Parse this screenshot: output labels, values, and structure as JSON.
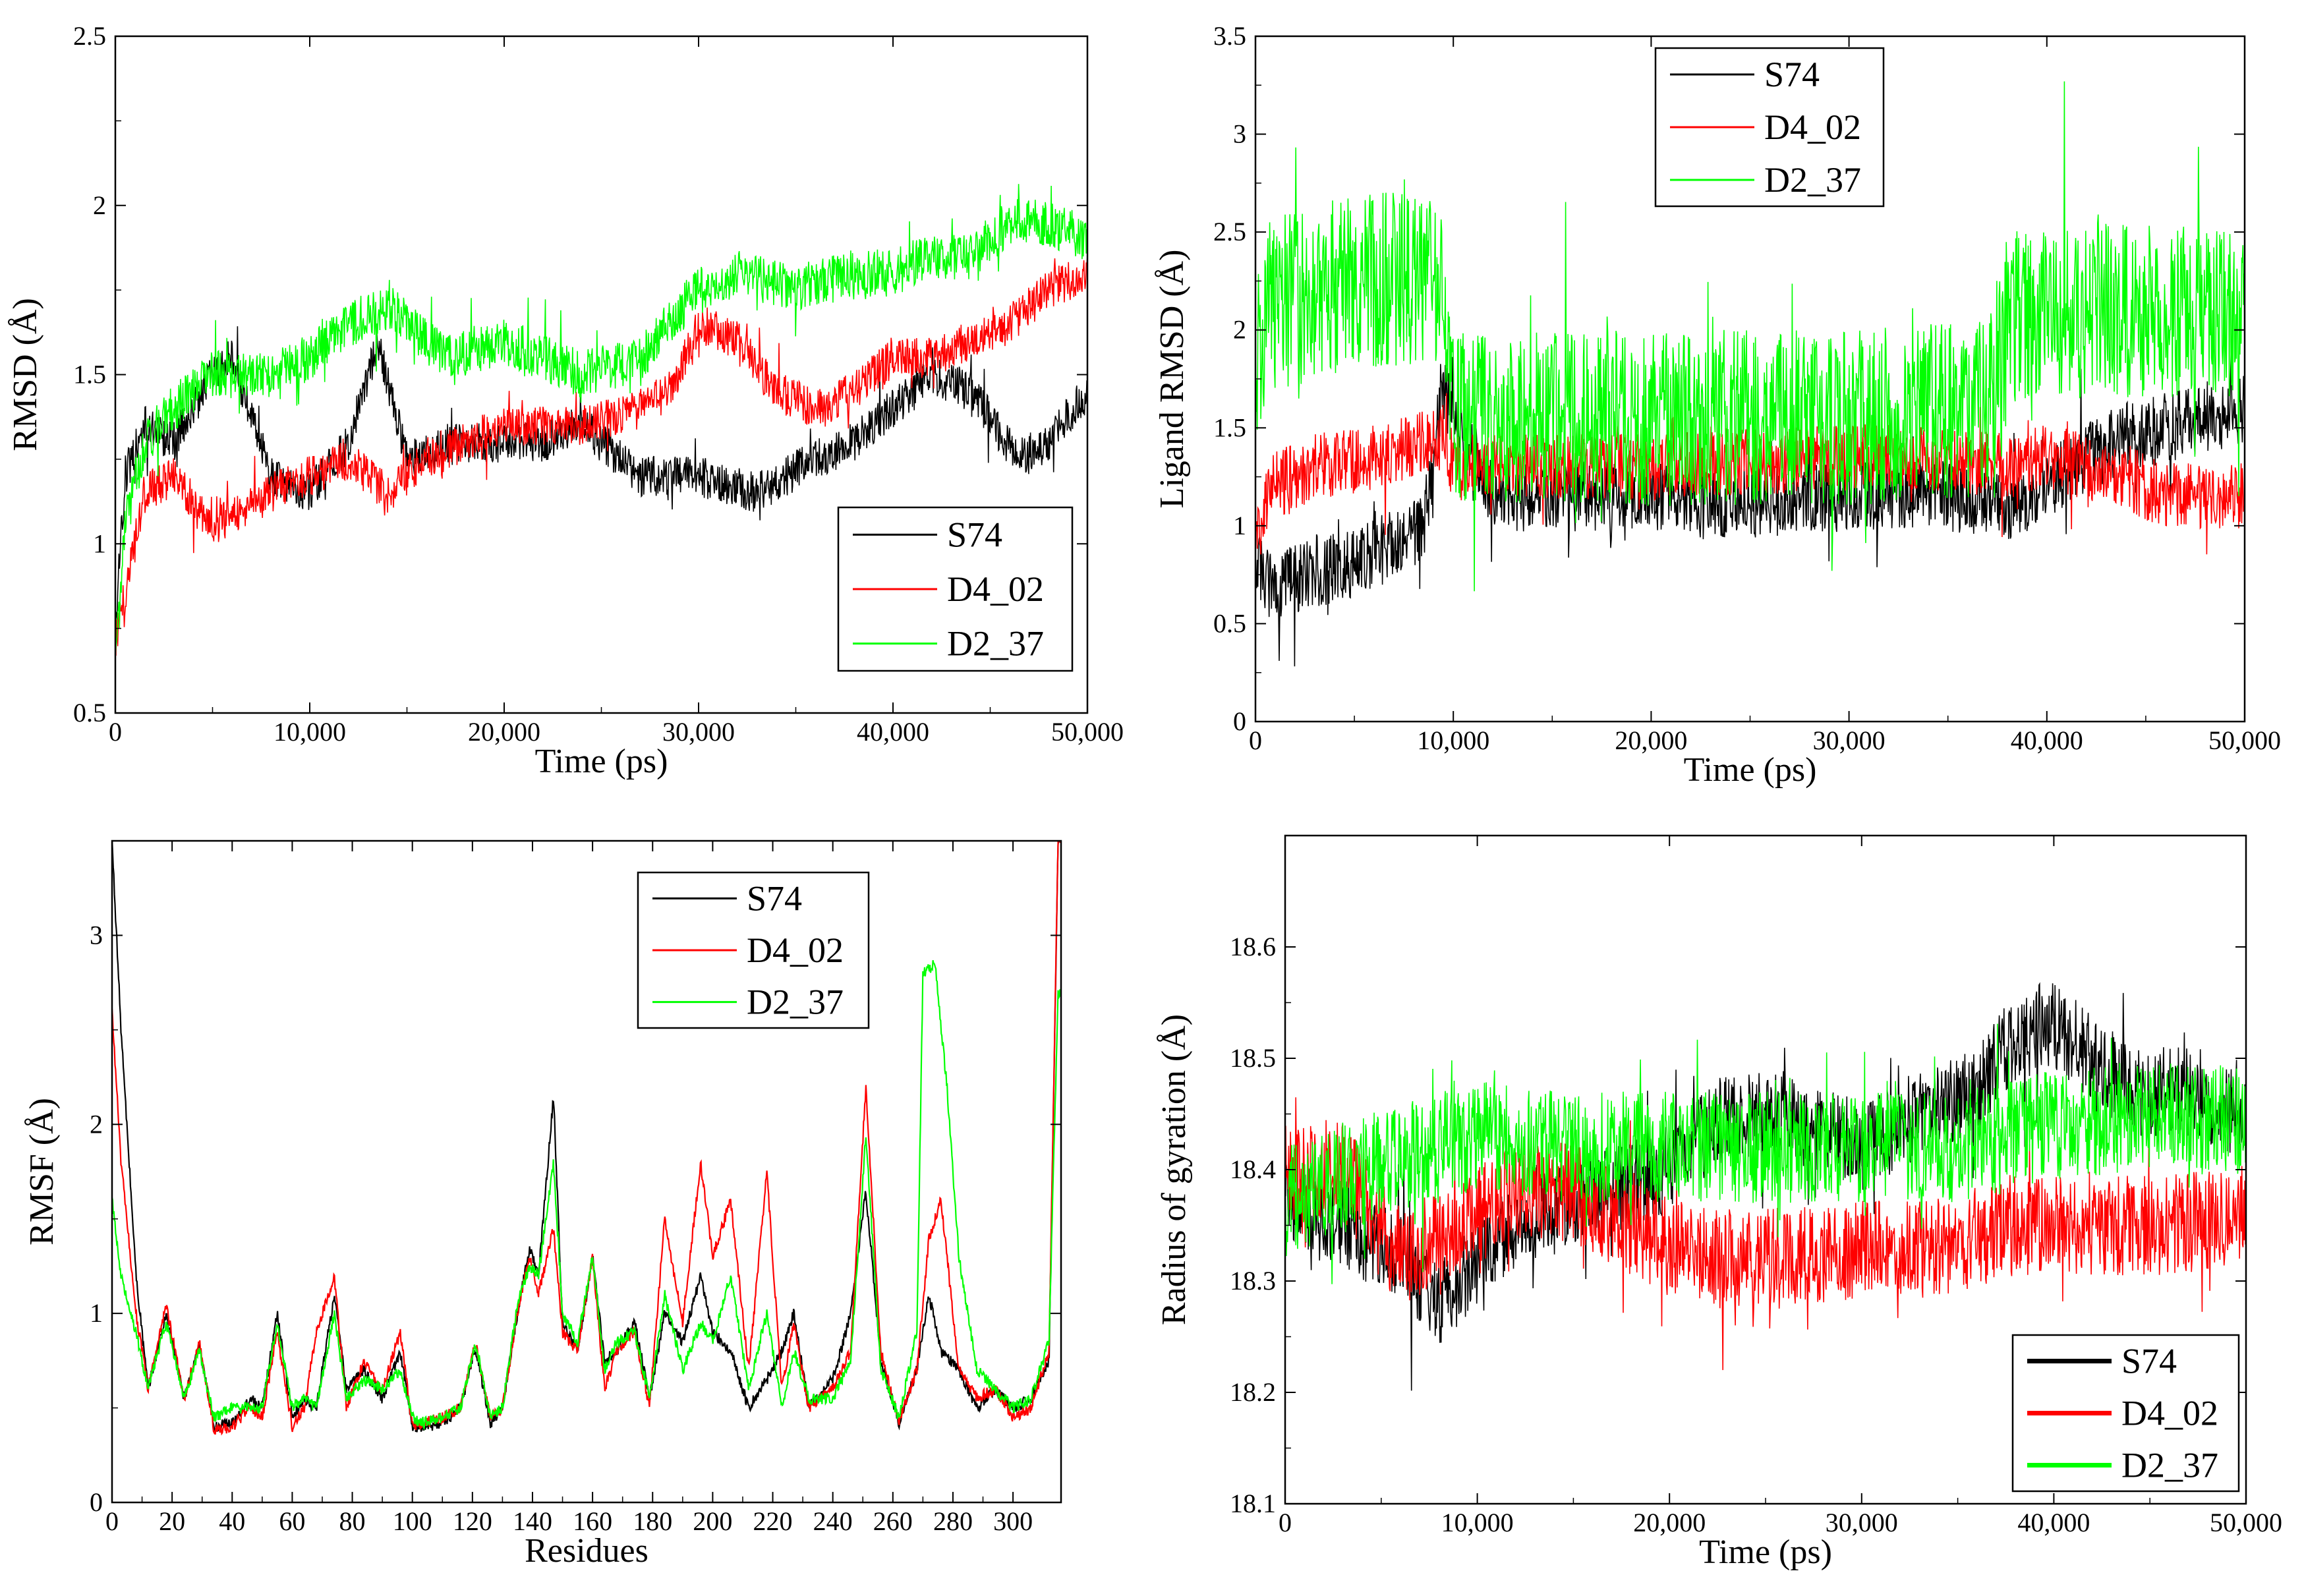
{
  "chart_data": [
    {
      "id": "rmsd",
      "type": "line",
      "title": "",
      "xlabel": "Time (ps)",
      "ylabel": "RMSD (Å)",
      "xlim": [
        0,
        50000
      ],
      "ylim": [
        0.5,
        2.5
      ],
      "xticks": [
        0,
        10000,
        20000,
        30000,
        40000,
        50000
      ],
      "xtick_labels": [
        "0",
        "10,000",
        "20,000",
        "30,000",
        "40,000",
        "50,000"
      ],
      "yticks": [
        0.5,
        1,
        1.5,
        2,
        2.5
      ],
      "ytick_labels": [
        "0.5",
        "1",
        "1.5",
        "2",
        "2.5"
      ],
      "legend_position": "bottom-right",
      "series": [
        {
          "name": "S74",
          "color": "#000000",
          "noise": 0.06,
          "x": [
            0,
            500,
            1500,
            3000,
            5000,
            6000,
            8000,
            10000,
            12000,
            13500,
            15000,
            18000,
            20000,
            22000,
            24000,
            27000,
            30000,
            33000,
            36000,
            38000,
            40000,
            42000,
            44000,
            46500,
            48000,
            50000
          ],
          "values": [
            0.75,
            1.2,
            1.35,
            1.3,
            1.5,
            1.55,
            1.2,
            1.15,
            1.3,
            1.6,
            1.25,
            1.3,
            1.3,
            1.3,
            1.35,
            1.2,
            1.2,
            1.15,
            1.25,
            1.3,
            1.4,
            1.5,
            1.45,
            1.25,
            1.3,
            1.45
          ]
        },
        {
          "name": "D4_02",
          "color": "#ff0000",
          "noise": 0.06,
          "x": [
            0,
            500,
            1500,
            3000,
            5000,
            8000,
            10000,
            12000,
            14000,
            16000,
            20000,
            24000,
            27000,
            28500,
            30000,
            32000,
            34000,
            36000,
            38000,
            40000,
            42000,
            44000,
            46000,
            48000,
            50000
          ],
          "values": [
            0.7,
            0.85,
            1.15,
            1.2,
            1.05,
            1.15,
            1.2,
            1.25,
            1.15,
            1.25,
            1.35,
            1.35,
            1.4,
            1.45,
            1.65,
            1.6,
            1.45,
            1.4,
            1.45,
            1.55,
            1.55,
            1.6,
            1.65,
            1.75,
            1.8
          ]
        },
        {
          "name": "D2_37",
          "color": "#00ff00",
          "noise": 0.07,
          "x": [
            0,
            500,
            1500,
            3000,
            5000,
            8000,
            10000,
            12000,
            14000,
            17000,
            20000,
            24000,
            27000,
            30000,
            32000,
            35000,
            38000,
            40000,
            42000,
            44000,
            46000,
            48000,
            50000
          ],
          "values": [
            0.65,
            1.05,
            1.3,
            1.4,
            1.5,
            1.5,
            1.55,
            1.65,
            1.7,
            1.55,
            1.6,
            1.5,
            1.55,
            1.75,
            1.8,
            1.75,
            1.8,
            1.8,
            1.85,
            1.85,
            1.95,
            1.95,
            1.9
          ]
        }
      ]
    },
    {
      "id": "ligand-rmsd",
      "type": "line",
      "title": "",
      "xlabel": "Time (ps)",
      "ylabel": "Ligand RMSD (Å)",
      "xlim": [
        0,
        50000
      ],
      "ylim": [
        0,
        3.5
      ],
      "xticks": [
        0,
        10000,
        20000,
        30000,
        40000,
        50000
      ],
      "xtick_labels": [
        "0",
        "10,000",
        "20,000",
        "30,000",
        "40,000",
        "50,000"
      ],
      "yticks": [
        0,
        0.5,
        1,
        1.5,
        2,
        2.5,
        3,
        3.5
      ],
      "ytick_labels": [
        "0",
        "0.5",
        "1",
        "1.5",
        "2",
        "2.5",
        "3",
        "3.5"
      ],
      "legend_position": "top-center",
      "series": [
        {
          "name": "S74",
          "color": "#000000",
          "noise": 0.18,
          "x": [
            0,
            800,
            3000,
            6000,
            7500,
            8500,
            9500,
            10500,
            12000,
            20000,
            23000,
            30000,
            35000,
            38000,
            40000,
            42000,
            44000,
            46000,
            48000,
            50000
          ],
          "values": [
            0.8,
            0.7,
            0.75,
            0.85,
            0.95,
            1.0,
            1.7,
            1.45,
            1.15,
            1.15,
            1.1,
            1.15,
            1.15,
            1.1,
            1.2,
            1.35,
            1.45,
            1.5,
            1.55,
            1.6
          ]
        },
        {
          "name": "D4_02",
          "color": "#ff0000",
          "noise": 0.17,
          "x": [
            0,
            800,
            3000,
            6000,
            9500,
            10000,
            15000,
            20000,
            30000,
            35000,
            38000,
            40000,
            42000,
            44000,
            46000,
            50000
          ],
          "values": [
            0.9,
            1.2,
            1.3,
            1.35,
            1.45,
            1.3,
            1.3,
            1.3,
            1.35,
            1.35,
            1.3,
            1.35,
            1.3,
            1.25,
            1.15,
            1.15
          ]
        },
        {
          "name": "D2_37",
          "color": "#00ff00",
          "noise": 0.45,
          "x": [
            0,
            500,
            3000,
            6000,
            9500,
            10000,
            20000,
            30000,
            37000,
            38000,
            40000,
            45000,
            50000
          ],
          "values": [
            1.8,
            2.1,
            2.2,
            2.25,
            2.3,
            1.55,
            1.55,
            1.55,
            1.6,
            2.05,
            2.1,
            2.1,
            2.05
          ]
        }
      ]
    },
    {
      "id": "rmsf",
      "type": "line",
      "title": "",
      "xlabel": "Residues",
      "ylabel": "RMSF (Å)",
      "xlim": [
        0,
        316
      ],
      "ylim": [
        0,
        3.5
      ],
      "xticks": [
        0,
        20,
        40,
        60,
        80,
        100,
        120,
        140,
        160,
        180,
        200,
        220,
        240,
        260,
        280,
        300
      ],
      "xtick_labels": [
        "0",
        "20",
        "40",
        "60",
        "80",
        "100",
        "120",
        "140",
        "160",
        "180",
        "200",
        "220",
        "240",
        "260",
        "280",
        "300"
      ],
      "yticks": [
        0,
        1,
        2,
        3
      ],
      "ytick_labels": [
        "0",
        "1",
        "2",
        "3"
      ],
      "legend_position": "top-right",
      "series": [
        {
          "name": "S74",
          "color": "#000000",
          "noise": 0.03,
          "x": [
            0,
            3,
            8,
            12,
            18,
            24,
            29,
            34,
            40,
            46,
            50,
            55,
            60,
            64,
            68,
            74,
            78,
            84,
            90,
            96,
            100,
            104,
            110,
            116,
            121,
            126,
            130,
            135,
            139,
            142,
            147,
            150,
            155,
            160,
            164,
            168,
            174,
            179,
            184,
            190,
            196,
            200,
            206,
            212,
            218,
            223,
            227,
            232,
            240,
            246,
            251,
            256,
            262,
            268,
            272,
            276,
            282,
            288,
            294,
            300,
            306,
            312,
            315,
            316
          ],
          "values": [
            3.5,
            2.5,
            1.2,
            0.6,
            1.0,
            0.55,
            0.82,
            0.4,
            0.42,
            0.55,
            0.5,
            1.0,
            0.45,
            0.55,
            0.5,
            1.1,
            0.6,
            0.7,
            0.55,
            0.8,
            0.4,
            0.4,
            0.42,
            0.5,
            0.82,
            0.42,
            0.5,
            1.0,
            1.35,
            1.2,
            2.15,
            0.95,
            0.8,
            1.3,
            0.75,
            0.8,
            0.95,
            0.55,
            1.0,
            0.85,
            1.2,
            0.9,
            0.8,
            0.5,
            0.65,
            0.8,
            1.0,
            0.5,
            0.65,
            1.0,
            1.65,
            0.75,
            0.42,
            0.7,
            1.1,
            0.8,
            0.7,
            0.5,
            0.6,
            0.5,
            0.55,
            0.75,
            3.5,
            3.5
          ]
        },
        {
          "name": "D4_02",
          "color": "#ff0000",
          "noise": 0.03,
          "x": [
            0,
            3,
            8,
            12,
            18,
            24,
            29,
            34,
            40,
            46,
            50,
            55,
            60,
            64,
            68,
            74,
            78,
            84,
            90,
            96,
            100,
            104,
            110,
            116,
            121,
            126,
            130,
            135,
            139,
            142,
            147,
            150,
            155,
            160,
            164,
            168,
            174,
            179,
            184,
            190,
            196,
            200,
            206,
            212,
            218,
            223,
            227,
            232,
            240,
            246,
            251,
            256,
            262,
            268,
            272,
            276,
            282,
            288,
            294,
            300,
            306,
            312,
            315,
            316
          ],
          "values": [
            2.6,
            1.8,
            1.0,
            0.6,
            1.05,
            0.55,
            0.85,
            0.38,
            0.4,
            0.5,
            0.45,
            0.9,
            0.4,
            0.5,
            0.9,
            1.2,
            0.5,
            0.75,
            0.6,
            0.9,
            0.4,
            0.42,
            0.45,
            0.5,
            0.85,
            0.45,
            0.5,
            1.0,
            1.3,
            1.1,
            1.45,
            0.9,
            0.8,
            1.3,
            0.6,
            0.8,
            0.9,
            0.5,
            1.5,
            0.95,
            1.8,
            1.3,
            1.6,
            0.7,
            1.75,
            0.6,
            0.95,
            0.5,
            0.6,
            0.8,
            2.2,
            0.8,
            0.42,
            0.7,
            1.4,
            1.6,
            0.7,
            0.55,
            0.6,
            0.45,
            0.5,
            0.8,
            3.5,
            3.5
          ]
        },
        {
          "name": "D2_37",
          "color": "#00ff00",
          "noise": 0.03,
          "x": [
            0,
            3,
            8,
            12,
            18,
            24,
            29,
            34,
            40,
            46,
            50,
            55,
            60,
            64,
            68,
            74,
            78,
            84,
            90,
            96,
            100,
            104,
            110,
            116,
            121,
            126,
            130,
            135,
            139,
            142,
            147,
            150,
            155,
            160,
            164,
            168,
            174,
            179,
            184,
            190,
            196,
            200,
            206,
            212,
            218,
            223,
            227,
            232,
            240,
            246,
            251,
            256,
            262,
            268,
            270,
            274,
            278,
            282,
            288,
            294,
            300,
            306,
            312,
            315,
            316
          ],
          "values": [
            1.6,
            1.2,
            0.9,
            0.6,
            0.95,
            0.55,
            0.8,
            0.45,
            0.5,
            0.5,
            0.5,
            0.95,
            0.5,
            0.55,
            0.5,
            1.0,
            0.55,
            0.65,
            0.6,
            0.7,
            0.45,
            0.42,
            0.45,
            0.5,
            0.85,
            0.45,
            0.5,
            1.05,
            1.25,
            1.2,
            1.8,
            1.0,
            0.85,
            1.3,
            0.7,
            0.85,
            0.9,
            0.55,
            1.1,
            0.7,
            0.95,
            0.85,
            1.2,
            0.6,
            1.0,
            0.5,
            0.8,
            0.55,
            0.55,
            0.75,
            1.95,
            0.7,
            0.45,
            0.9,
            2.8,
            2.85,
            2.2,
            1.3,
            0.7,
            0.6,
            0.5,
            0.55,
            0.85,
            2.7,
            2.7
          ]
        }
      ]
    },
    {
      "id": "rgyr",
      "type": "line",
      "title": "",
      "xlabel": "Time (ps)",
      "ylabel": "Radius of gyration (Å)",
      "xlim": [
        0,
        50000
      ],
      "ylim": [
        18.1,
        18.7
      ],
      "xticks": [
        0,
        10000,
        20000,
        30000,
        40000,
        50000
      ],
      "xtick_labels": [
        "0",
        "10,000",
        "20,000",
        "30,000",
        "40,000",
        "50,000"
      ],
      "yticks": [
        18.1,
        18.2,
        18.3,
        18.4,
        18.5,
        18.6
      ],
      "ytick_labels": [
        "18.1",
        "18.2",
        "18.3",
        "18.4",
        "18.5",
        "18.6"
      ],
      "legend_position": "bottom-right",
      "series": [
        {
          "name": "S74",
          "color": "#000000",
          "noise": 0.04,
          "x": [
            0,
            3000,
            6000,
            8000,
            10000,
            13000,
            17000,
            20000,
            23000,
            26000,
            30000,
            33000,
            36000,
            38000,
            40000,
            42000,
            44000,
            47000,
            50000
          ],
          "values": [
            18.38,
            18.35,
            18.32,
            18.28,
            18.32,
            18.36,
            18.38,
            18.4,
            18.45,
            18.45,
            18.42,
            18.45,
            18.47,
            18.52,
            18.53,
            18.5,
            18.47,
            18.47,
            18.45
          ]
        },
        {
          "name": "D4_02",
          "color": "#ff0000",
          "noise": 0.045,
          "x": [
            0,
            3000,
            6000,
            9000,
            12000,
            15000,
            18000,
            20000,
            22000,
            26000,
            30000,
            34000,
            38000,
            42000,
            46000,
            50000
          ],
          "values": [
            18.4,
            18.4,
            18.32,
            18.35,
            18.38,
            18.38,
            18.35,
            18.33,
            18.32,
            18.32,
            18.33,
            18.33,
            18.35,
            18.35,
            18.35,
            18.36
          ]
        },
        {
          "name": "D2_37",
          "color": "#00ff00",
          "noise": 0.05,
          "x": [
            0,
            4000,
            8000,
            10000,
            15000,
            20000,
            25000,
            30000,
            35000,
            40000,
            45000,
            50000
          ],
          "values": [
            18.37,
            18.4,
            18.42,
            18.43,
            18.42,
            18.42,
            18.42,
            18.42,
            18.42,
            18.44,
            18.45,
            18.44
          ]
        }
      ]
    }
  ]
}
